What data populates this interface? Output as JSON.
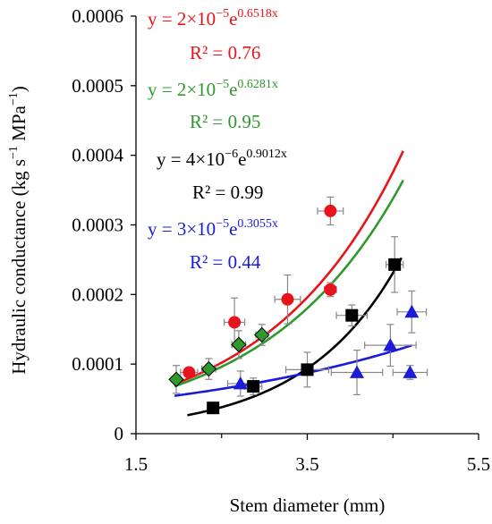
{
  "chart_data": {
    "type": "scatter",
    "xlabel": "Stem diameter (mm)",
    "ylabel": {
      "main": "Hydraulic conductance (kg s",
      "exp1": "−1",
      "middle": " MPa",
      "exp2": "−1",
      "end": ")"
    },
    "xlim": [
      1.5,
      5.5
    ],
    "ylim": [
      0,
      0.0006
    ],
    "x_ticks": [
      "1.5",
      "3.5",
      "5.5"
    ],
    "y_ticks": [
      "0",
      "0.0001",
      "0.0002",
      "0.0003",
      "0.0004",
      "0.0005",
      "0.0006"
    ],
    "grid": false,
    "series": [
      {
        "color": "#e8141b",
        "marker": "circle",
        "points": [
          {
            "x": 2.12,
            "y": 8.8e-05,
            "xerr": 0.1,
            "yerr": 5e-06
          },
          {
            "x": 2.65,
            "y": 0.00016,
            "xerr": 0.12,
            "yerr": 3.5e-05
          },
          {
            "x": 3.27,
            "y": 0.000193,
            "xerr": 0.15,
            "yerr": 3.5e-05
          },
          {
            "x": 3.77,
            "y": 0.000207,
            "xerr": 0.07,
            "yerr": 1e-05
          },
          {
            "x": 3.77,
            "y": 0.00032,
            "xerr": 0.15,
            "yerr": 2e-05
          }
        ],
        "fit": {
          "a": 2e-05,
          "b": 0.6518,
          "x_range": [
            1.95,
            4.62
          ]
        },
        "equation": {
          "prefix": "y = 2×10",
          "exp_coef": "−5",
          "mid": "e",
          "exp_e": "0.6518x"
        },
        "r2": "R² = 0.76"
      },
      {
        "color": "#2e9a2e",
        "marker": "diamond",
        "points": [
          {
            "x": 1.97,
            "y": 7.8e-05,
            "xerr": 0.05,
            "yerr": 2e-05
          },
          {
            "x": 2.35,
            "y": 9.3e-05,
            "xerr": 0.08,
            "yerr": 1.5e-05
          },
          {
            "x": 2.7,
            "y": 0.000128,
            "xerr": 0.08,
            "yerr": 2e-05
          },
          {
            "x": 2.97,
            "y": 0.000142,
            "xerr": 0.07,
            "yerr": 1.5e-05
          }
        ],
        "fit": {
          "a": 2e-05,
          "b": 0.6281,
          "x_range": [
            1.95,
            4.62
          ]
        },
        "equation": {
          "prefix": "y = 2×10",
          "exp_coef": "−5",
          "mid": "e",
          "exp_e": "0.6281x"
        },
        "r2": "R² = 0.95"
      },
      {
        "color": "#000000",
        "marker": "square",
        "points": [
          {
            "x": 2.4,
            "y": 3.7e-05,
            "xerr": 0.0,
            "yerr": 0.0
          },
          {
            "x": 2.87,
            "y": 6.8e-05,
            "xerr": 0.1,
            "yerr": 1.2e-05
          },
          {
            "x": 3.5,
            "y": 9.2e-05,
            "xerr": 0.25,
            "yerr": 2.5e-05
          },
          {
            "x": 4.02,
            "y": 0.00017,
            "xerr": 0.18,
            "yerr": 1.5e-05
          },
          {
            "x": 4.52,
            "y": 0.000243,
            "xerr": 0.1,
            "yerr": 4e-05
          }
        ],
        "fit": {
          "a": 4e-06,
          "b": 0.9012,
          "x_range": [
            2.1,
            4.6
          ]
        },
        "equation": {
          "prefix": "y = 4×10",
          "exp_coef": "−6",
          "mid": "e",
          "exp_e": "0.9012x"
        },
        "r2": "R² = 0.99"
      },
      {
        "color": "#1b1bd8",
        "marker": "triangle",
        "points": [
          {
            "x": 2.72,
            "y": 7.2e-05,
            "xerr": 0.15,
            "yerr": 1.8e-05
          },
          {
            "x": 4.08,
            "y": 8.8e-05,
            "xerr": 0.3,
            "yerr": 3.2e-05
          },
          {
            "x": 4.47,
            "y": 0.000127,
            "xerr": 0.3,
            "yerr": 3e-05
          },
          {
            "x": 4.7,
            "y": 8.8e-05,
            "xerr": 0.2,
            "yerr": 1e-05
          },
          {
            "x": 4.72,
            "y": 0.000175,
            "xerr": 0.17,
            "yerr": 3e-05
          }
        ],
        "fit": {
          "a": 3e-05,
          "b": 0.3055,
          "x_range": [
            1.95,
            4.72
          ]
        },
        "equation": {
          "prefix": "y = 3×10",
          "exp_coef": "−5",
          "mid": "e",
          "exp_e": "0.3055x"
        },
        "r2": "R² = 0.44"
      }
    ]
  }
}
